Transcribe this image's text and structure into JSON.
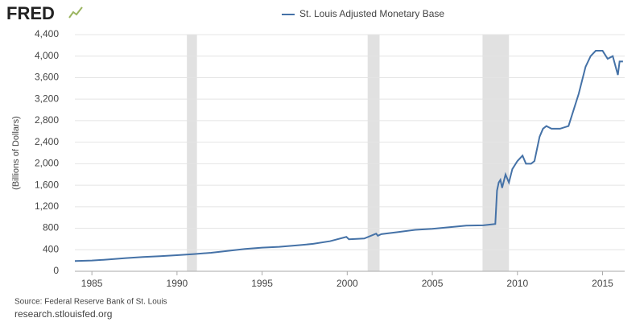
{
  "logo": "FRED",
  "chart_data": {
    "type": "line",
    "title": "St. Louis Adjusted Monetary Base",
    "y_label": "(Billions of Dollars)",
    "source": "Source: Federal Reserve Bank of St. Louis",
    "website": "research.stlouisfed.org",
    "xlim": [
      1984.0,
      2016.3
    ],
    "ylim": [
      0,
      4400
    ],
    "xticks": [
      1985,
      1990,
      1995,
      2000,
      2005,
      2010,
      2015
    ],
    "yticks": [
      0,
      400,
      {
        "value": 800,
        "label": "800"
      },
      {
        "value": 1200,
        "label": "1,200"
      },
      {
        "value": 1600,
        "label": "1,600"
      },
      {
        "value": 2000,
        "label": "2,000"
      },
      {
        "value": 2400,
        "label": "2,400"
      },
      {
        "value": 2800,
        "label": "2,800"
      },
      {
        "value": 3200,
        "label": "3,200"
      },
      {
        "value": 3600,
        "label": "3,600"
      },
      {
        "value": 4000,
        "label": "4,000"
      },
      {
        "value": 4400,
        "label": "4,400"
      }
    ],
    "grid": true,
    "recessions": [
      [
        1990.58,
        1991.17
      ],
      [
        2001.2,
        2001.9
      ],
      [
        2007.95,
        2009.5
      ]
    ],
    "recession_color": "#e1e1e1",
    "x": [
      1984.0,
      1985.0,
      1986.0,
      1987.0,
      1988.0,
      1989.0,
      1990.0,
      1991.0,
      1992.0,
      1993.0,
      1994.0,
      1995.0,
      1996.0,
      1997.0,
      1998.0,
      1999.0,
      1999.95,
      2000.1,
      2001.0,
      2001.7,
      2001.8,
      2002.0,
      2003.0,
      2004.0,
      2005.0,
      2006.0,
      2007.0,
      2008.0,
      2008.7,
      2008.8,
      2008.9,
      2009.0,
      2009.1,
      2009.3,
      2009.5,
      2009.7,
      2010.0,
      2010.3,
      2010.5,
      2010.8,
      2011.0,
      2011.3,
      2011.5,
      2011.7,
      2012.0,
      2012.5,
      2013.0,
      2013.3,
      2013.6,
      2014.0,
      2014.3,
      2014.6,
      2015.0,
      2015.3,
      2015.6,
      2015.9,
      2016.0,
      2016.2
    ],
    "series": [
      {
        "name": "St. Louis Adjusted Monetary Base",
        "color": "#4572a7",
        "values": [
          190,
          200,
          220,
          245,
          265,
          280,
          300,
          320,
          345,
          380,
          415,
          440,
          455,
          480,
          510,
          560,
          640,
          595,
          610,
          700,
          660,
          690,
          730,
          770,
          790,
          820,
          850,
          855,
          880,
          1500,
          1650,
          1700,
          1550,
          1800,
          1650,
          1900,
          2050,
          2150,
          2000,
          2000,
          2050,
          2500,
          2650,
          2700,
          2650,
          2650,
          2700,
          3000,
          3300,
          3800,
          4000,
          4100,
          4100,
          3950,
          4000,
          3650,
          3900,
          3900
        ]
      }
    ]
  }
}
